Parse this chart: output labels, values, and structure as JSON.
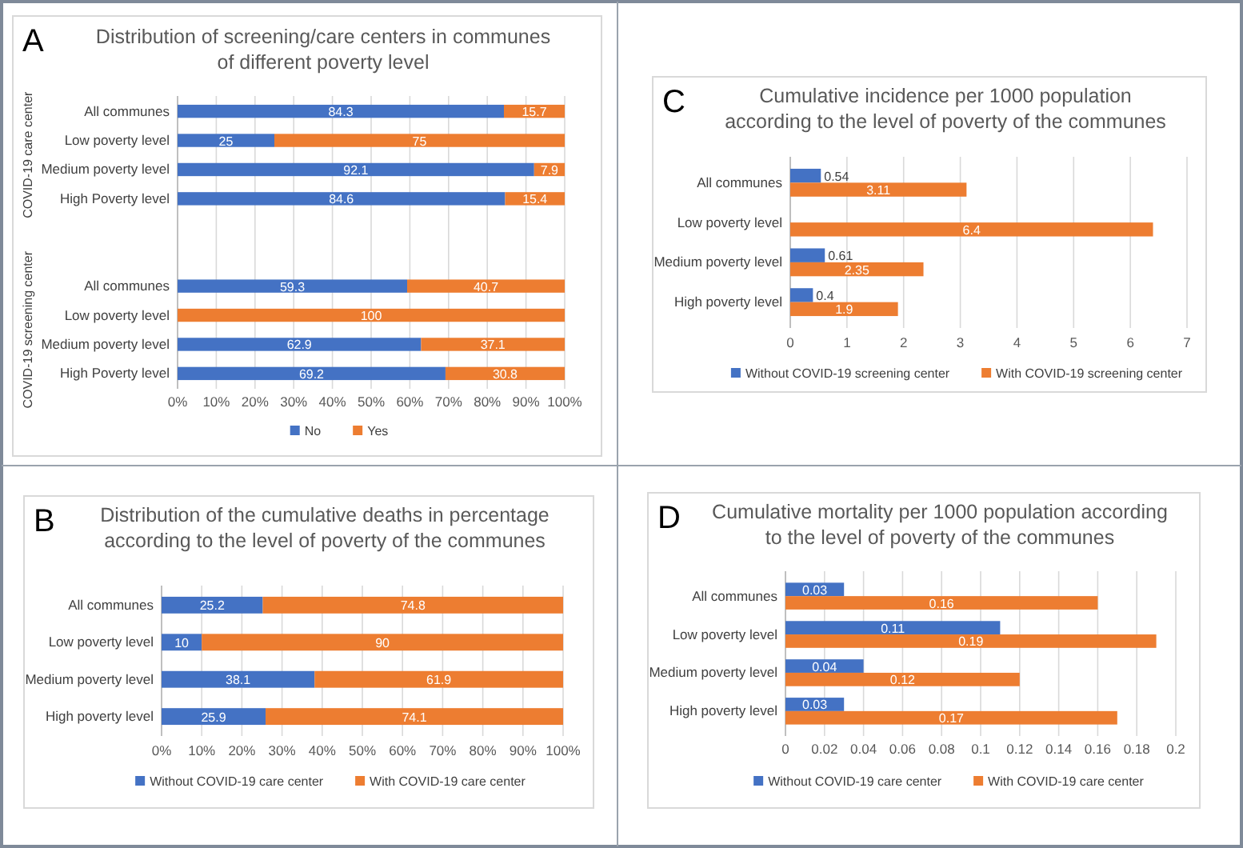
{
  "chart_data": [
    {
      "type": "bar",
      "orientation": "horizontal",
      "stacked": true,
      "title": "Distribution of screening/care centers in communes of different poverty level",
      "annotations": [
        "A",
        "COVID-19 care center",
        "COVID-19 screening center"
      ],
      "categories": [
        "All communes",
        "Low poverty level",
        "Medium poverty level",
        "High Poverty level",
        null,
        null,
        "All communes",
        "Low poverty level",
        "Medium poverty level",
        "High Poverty level"
      ],
      "series": [
        {
          "name": "No",
          "color": "#4472c4",
          "values": [
            84.3,
            25,
            92.1,
            84.6,
            null,
            null,
            59.3,
            null,
            62.9,
            69.2
          ]
        },
        {
          "name": "Yes",
          "color": "#ed7d31",
          "values": [
            15.7,
            75,
            7.9,
            15.4,
            null,
            null,
            40.7,
            100,
            37.1,
            30.8
          ]
        }
      ],
      "xlim": [
        0,
        100
      ],
      "xticks": [
        {
          "value": 0,
          "label": "0%"
        },
        {
          "value": 10,
          "label": "10%"
        },
        {
          "value": 20,
          "label": "20%"
        },
        {
          "value": 30,
          "label": "30%"
        },
        {
          "value": 40,
          "label": "40%"
        },
        {
          "value": 50,
          "label": "50%"
        },
        {
          "value": 60,
          "label": "60%"
        },
        {
          "value": 70,
          "label": "70%"
        },
        {
          "value": 80,
          "label": "80%"
        },
        {
          "value": 90,
          "label": "90%"
        },
        {
          "value": 100,
          "label": "100%"
        }
      ],
      "grid": "x",
      "legend": "bottom",
      "data_labels": true
    },
    {
      "type": "bar",
      "orientation": "horizontal",
      "stacked": true,
      "title": "Distribution of the cumulative deaths in percentage according to the level of poverty of the communes",
      "annotations": [
        "B"
      ],
      "categories": [
        "All communes",
        "Low  poverty level",
        "Medium poverty level",
        "High poverty level"
      ],
      "series": [
        {
          "name": "Without COVID-19 care center",
          "color": "#4472c4",
          "values": [
            25.2,
            10,
            38.1,
            25.9
          ]
        },
        {
          "name": "With COVID-19 care center",
          "color": "#ed7d31",
          "values": [
            74.8,
            90,
            61.9,
            74.1
          ]
        }
      ],
      "xlim": [
        0,
        100
      ],
      "xticks": [
        {
          "value": 0,
          "label": "0%"
        },
        {
          "value": 10,
          "label": "10%"
        },
        {
          "value": 20,
          "label": "20%"
        },
        {
          "value": 30,
          "label": "30%"
        },
        {
          "value": 40,
          "label": "40%"
        },
        {
          "value": 50,
          "label": "50%"
        },
        {
          "value": 60,
          "label": "60%"
        },
        {
          "value": 70,
          "label": "70%"
        },
        {
          "value": 80,
          "label": "80%"
        },
        {
          "value": 90,
          "label": "90%"
        },
        {
          "value": 100,
          "label": "100%"
        }
      ],
      "grid": "x",
      "legend": "bottom",
      "data_labels": true
    },
    {
      "type": "bar",
      "orientation": "horizontal",
      "title": "Cumulative incidence per 1000 population according to the level of poverty of the communes",
      "annotations": [
        "C"
      ],
      "categories": [
        "All communes",
        "Low poverty level",
        "Medium poverty level",
        "High poverty level"
      ],
      "series": [
        {
          "name": "Without COVID-19 screening center",
          "color": "#4472c4",
          "values": [
            0.54,
            null,
            0.61,
            0.4
          ]
        },
        {
          "name": "With COVID-19 screening center",
          "color": "#ed7d31",
          "values": [
            3.11,
            6.4,
            2.35,
            1.9
          ]
        }
      ],
      "xlim": [
        0,
        7
      ],
      "xticks": [
        0,
        1,
        2,
        3,
        4,
        5,
        6,
        7
      ],
      "grid": "x",
      "legend": "bottom",
      "data_labels": true
    },
    {
      "type": "bar",
      "orientation": "horizontal",
      "title": "Cumulative mortality per 1000 population according to the level of poverty of the communes",
      "annotations": [
        "D"
      ],
      "categories": [
        "All communes",
        "Low  poverty level",
        "Medium poverty level",
        "High poverty level"
      ],
      "series": [
        {
          "name": "Without COVID-19 care center",
          "color": "#4472c4",
          "values": [
            0.03,
            0.11,
            0.04,
            0.03
          ]
        },
        {
          "name": "With COVID-19 care center",
          "color": "#ed7d31",
          "values": [
            0.16,
            0.19,
            0.12,
            0.17
          ]
        }
      ],
      "xlim": [
        0,
        0.2
      ],
      "xticks": [
        0,
        0.02,
        0.04,
        0.06,
        0.08,
        0.1,
        0.12,
        0.14,
        0.16,
        0.18,
        0.2
      ],
      "grid": "x",
      "legend": "bottom",
      "data_labels": true
    }
  ]
}
